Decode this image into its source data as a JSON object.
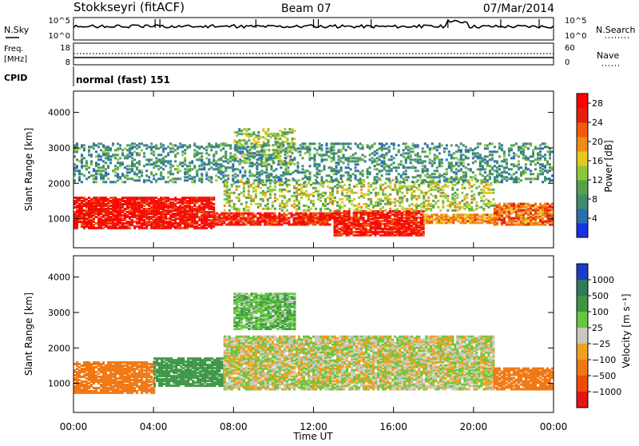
{
  "header": {
    "station": "Stokkseyri (fitACF)",
    "beam": "Beam 07",
    "date": "07/Mar/2014"
  },
  "top_panels": {
    "nsky_label": "N.Sky",
    "nsky_ticks": [
      "10^5",
      "10^0"
    ],
    "nsearch_label": "N.Search",
    "nsearch_ticks": [
      "10^5",
      "10^0"
    ],
    "freq_label_1": "Freq.",
    "freq_label_2": "[MHz]",
    "freq_ticks": [
      "18",
      "8"
    ],
    "nave_label": "Nave",
    "nave_ticks": [
      "60",
      "0"
    ],
    "cpid_label": "CPID",
    "cpid_text": "normal (fast) 151"
  },
  "colors": {
    "power_scale": [
      "#1432e6",
      "#2a6fb0",
      "#3c8c6e",
      "#56a24c",
      "#8cc83c",
      "#e6c81e",
      "#f08c14",
      "#f05a0a",
      "#e61e0a",
      "#ff0000"
    ],
    "velocity_scale": [
      "#1a3cc8",
      "#2e7a5a",
      "#3c9646",
      "#64c83c",
      "#c8c8c0",
      "#f0a01e",
      "#f07814",
      "#f04a0a",
      "#e61414"
    ]
  },
  "chart_data": [
    {
      "type": "heatmap",
      "name": "power-panel",
      "xlabel": "",
      "ylabel": "Slant Range [km]",
      "x_ticks": [
        "00:00",
        "04:00",
        "08:00",
        "12:00",
        "16:00",
        "20:00",
        "00:00"
      ],
      "xlim_hours": [
        0,
        24
      ],
      "y_ticks": [
        1000,
        2000,
        3000,
        4000
      ],
      "ylim_km": [
        180,
        4600
      ],
      "colorbar_label": "Power [dB]",
      "colorbar_ticks": [
        4,
        8,
        12,
        16,
        20,
        24,
        28
      ],
      "colorbar_range": [
        0,
        30
      ],
      "regions": [
        {
          "t0": 0.0,
          "t1": 7.0,
          "r0": 700,
          "r1": 1600,
          "value": 28
        },
        {
          "t0": 7.0,
          "t1": 13.0,
          "r0": 800,
          "r1": 1150,
          "value": 26
        },
        {
          "t0": 13.0,
          "t1": 17.5,
          "r0": 500,
          "r1": 1200,
          "value": 27
        },
        {
          "t0": 17.5,
          "t1": 21.0,
          "r0": 850,
          "r1": 1100,
          "value": 20
        },
        {
          "t0": 21.0,
          "t1": 24.0,
          "r0": 800,
          "r1": 1400,
          "value": 22
        },
        {
          "t0": 7.5,
          "t1": 21.0,
          "r0": 1200,
          "r1": 2100,
          "value": 14
        },
        {
          "t0": 8.0,
          "t1": 11.0,
          "r0": 2500,
          "r1": 3500,
          "value": 13
        },
        {
          "t0": 0.0,
          "t1": 24.0,
          "r0": 2000,
          "r1": 3100,
          "value": 8
        }
      ]
    },
    {
      "type": "heatmap",
      "name": "velocity-panel",
      "xlabel": "Time UT",
      "ylabel": "Slant Range [km]",
      "x_ticks": [
        "00:00",
        "04:00",
        "08:00",
        "12:00",
        "16:00",
        "20:00",
        "00:00"
      ],
      "xlim_hours": [
        0,
        24
      ],
      "y_ticks": [
        1000,
        2000,
        3000,
        4000
      ],
      "ylim_km": [
        180,
        4600
      ],
      "colorbar_label": "Velocity [m s⁻¹]",
      "colorbar_ticks": [
        "1000",
        "500",
        "100",
        "25",
        "−25",
        "−100",
        "−500",
        "−1000"
      ],
      "regions": [
        {
          "t0": 0.0,
          "t1": 4.0,
          "r0": 700,
          "r1": 1600,
          "value": -300
        },
        {
          "t0": 4.0,
          "t1": 7.5,
          "r0": 900,
          "r1": 1700,
          "value": 400
        },
        {
          "t0": 7.5,
          "t1": 21.0,
          "r0": 800,
          "r1": 2300,
          "value": 0
        },
        {
          "t0": 21.0,
          "t1": 24.0,
          "r0": 800,
          "r1": 1400,
          "value": -400
        },
        {
          "t0": 8.0,
          "t1": 11.0,
          "r0": 2500,
          "r1": 3500,
          "value": 80
        }
      ]
    }
  ]
}
